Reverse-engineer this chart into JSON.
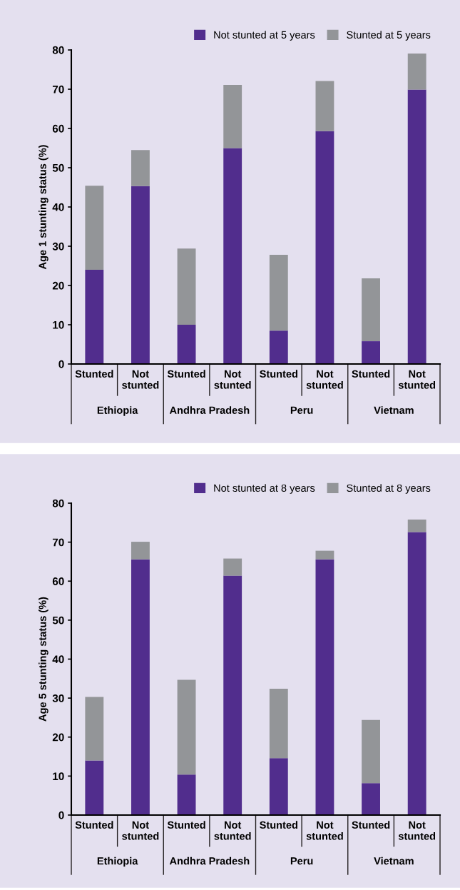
{
  "chart_data": [
    {
      "type": "bar",
      "stacked": true,
      "ylabel": "Age 1 stunting status (%)",
      "categories": [
        "Stunted",
        "Not\nstunted",
        "Stunted",
        "Not\nstunted",
        "Stunted",
        "Not\nstunted",
        "Stunted",
        "Not\nstunted"
      ],
      "series": [
        {
          "name": "Not stunted at 5 years",
          "color": "#512d8d",
          "values": [
            24.0,
            45.3,
            10.0,
            55.0,
            8.5,
            59.3,
            5.8,
            69.9
          ]
        },
        {
          "name": "Stunted at 5 years",
          "color": "#939598",
          "values": [
            21.4,
            9.2,
            19.4,
            16.1,
            19.3,
            12.8,
            16.0,
            9.2
          ]
        }
      ],
      "annotations": [
        "Ethiopia",
        "Andhra Pradesh",
        "Peru",
        "Vietnam"
      ],
      "ylim": [
        0,
        80
      ],
      "yticks": [
        0,
        10,
        20,
        30,
        40,
        50,
        60,
        70,
        80
      ],
      "legend": "top right",
      "grid": false
    },
    {
      "type": "bar",
      "stacked": true,
      "ylabel": "Age 5 stunting status (%)",
      "categories": [
        "Stunted",
        "Not\nstunted",
        "Stunted",
        "Not\nstunted",
        "Stunted",
        "Not\nstunted",
        "Stunted",
        "Not\nstunted"
      ],
      "series": [
        {
          "name": "Not stunted at 8 years",
          "color": "#512d8d",
          "values": [
            14.0,
            65.6,
            10.4,
            61.4,
            14.6,
            65.6,
            8.2,
            72.6
          ]
        },
        {
          "name": "Stunted at 8 years",
          "color": "#939598",
          "values": [
            16.3,
            4.5,
            24.3,
            4.4,
            17.8,
            2.2,
            16.2,
            3.2
          ]
        }
      ],
      "annotations": [
        "Ethiopia",
        "Andhra Pradesh",
        "Peru",
        "Vietnam"
      ],
      "ylim": [
        0,
        80
      ],
      "yticks": [
        0,
        10,
        20,
        30,
        40,
        50,
        60,
        70,
        80
      ],
      "legend": "top right",
      "grid": false
    }
  ]
}
